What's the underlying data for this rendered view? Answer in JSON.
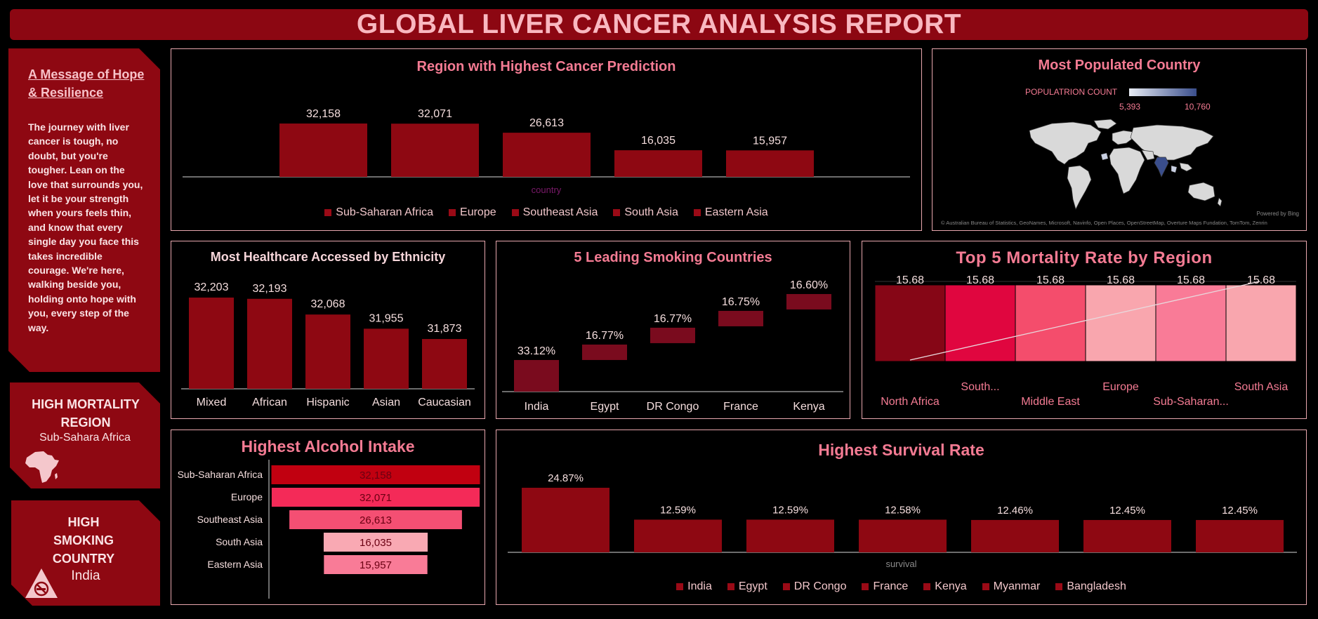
{
  "report_title": "GLOBAL LIVER CANCER ANALYSIS REPORT",
  "message": {
    "heading": "A Message of Hope & Resilience",
    "body": "The journey with liver cancer is tough, no doubt, but you're tougher. Lean on the love that surrounds you, let it be your strength when yours feels thin, and know that every single day you face this takes incredible courage. We're here, walking beside you, holding onto hope with you, every step of the way."
  },
  "kpi_mortality": {
    "label": "HIGH MORTALITY REGION",
    "value": "Sub-Sahara Africa",
    "icon": "africa-icon"
  },
  "kpi_smoking": {
    "label": "HIGH SMOKING COUNTRY",
    "value": "India",
    "icon": "no-smoking-icon"
  },
  "map": {
    "title": "Most Populated Country",
    "legend_label": "POPULATRION COUNT",
    "min_label": "5,393",
    "max_label": "10,760",
    "powered_by": "Powered by Bing",
    "attribution": "© Australian Bureau of Statistics, GeoNames, Microsoft, Navinfo, Open Places, OpenStreetMap, Overture Maps Fundation, TomTom, Zenrin",
    "highlight_country": "India"
  },
  "chart_data": [
    {
      "id": "region_prediction",
      "type": "bar",
      "title": "Region with Highest Cancer Prediction",
      "xlabel": "country",
      "categories": [
        "Sub-Saharan Africa",
        "Europe",
        "Southeast Asia",
        "South Asia",
        "Eastern Asia"
      ],
      "values": [
        32158,
        32071,
        26613,
        16035,
        15957
      ],
      "value_labels": [
        "32,158",
        "32,071",
        "26,613",
        "16,035",
        "15,957"
      ],
      "legend": "bottom"
    },
    {
      "id": "healthcare_ethnicity",
      "type": "bar",
      "title": "Most Healthcare Accessed by Ethnicity",
      "categories": [
        "Mixed",
        "African",
        "Hispanic",
        "Asian",
        "Caucasian"
      ],
      "values": [
        32203,
        32193,
        32068,
        31955,
        31873
      ],
      "value_labels": [
        "32,203",
        "32,193",
        "32,068",
        "31,955",
        "31,873"
      ]
    },
    {
      "id": "smoking_countries",
      "type": "bar",
      "title": "5 Leading Smoking Countries",
      "categories": [
        "India",
        "Egypt",
        "DR Congo",
        "France",
        "Kenya"
      ],
      "values": [
        33.12,
        16.77,
        16.77,
        16.75,
        16.6
      ],
      "value_labels": [
        "33.12%",
        "16.77%",
        "16.77%",
        "16.75%",
        "16.60%"
      ]
    },
    {
      "id": "mortality_region",
      "type": "heatmap",
      "title": "Top 5 Mortality Rate by Region",
      "categories": [
        "North Africa",
        "South...",
        "Middle East",
        "Europe",
        "Sub-Saharan...",
        "South Asia"
      ],
      "values": [
        15.68,
        15.68,
        15.68,
        15.68,
        15.68,
        15.68
      ],
      "value_labels": [
        "15.68",
        "15.68",
        "15.68",
        "15.68",
        "15.68",
        "15.68"
      ],
      "colors": [
        "#860616",
        "#e0063f",
        "#f44d6c",
        "#f9a6ae",
        "#f97b97",
        "#f9a6ae"
      ]
    },
    {
      "id": "alcohol_intake",
      "type": "bar",
      "orientation": "horizontal-funnel",
      "title": "Highest Alcohol Intake",
      "categories": [
        "Sub-Saharan Africa",
        "Europe",
        "Southeast Asia",
        "South Asia",
        "Eastern Asia"
      ],
      "values": [
        32158,
        32071,
        26613,
        16035,
        15957
      ],
      "value_labels": [
        "32,158",
        "32,071",
        "26,613",
        "16,035",
        "15,957"
      ],
      "colors": [
        "#c10010",
        "#f42a58",
        "#f44f73",
        "#f9a9b3",
        "#f97b97"
      ]
    },
    {
      "id": "survival_rate",
      "type": "bar",
      "title": "Highest Survival Rate",
      "xlabel": "survival",
      "categories": [
        "India",
        "Egypt",
        "DR Congo",
        "France",
        "Kenya",
        "Myanmar",
        "Bangladesh"
      ],
      "values": [
        24.87,
        12.59,
        12.59,
        12.58,
        12.46,
        12.45,
        12.45
      ],
      "value_labels": [
        "24.87%",
        "12.59%",
        "12.59%",
        "12.58%",
        "12.46%",
        "12.45%",
        "12.45%"
      ],
      "legend": "bottom"
    }
  ]
}
